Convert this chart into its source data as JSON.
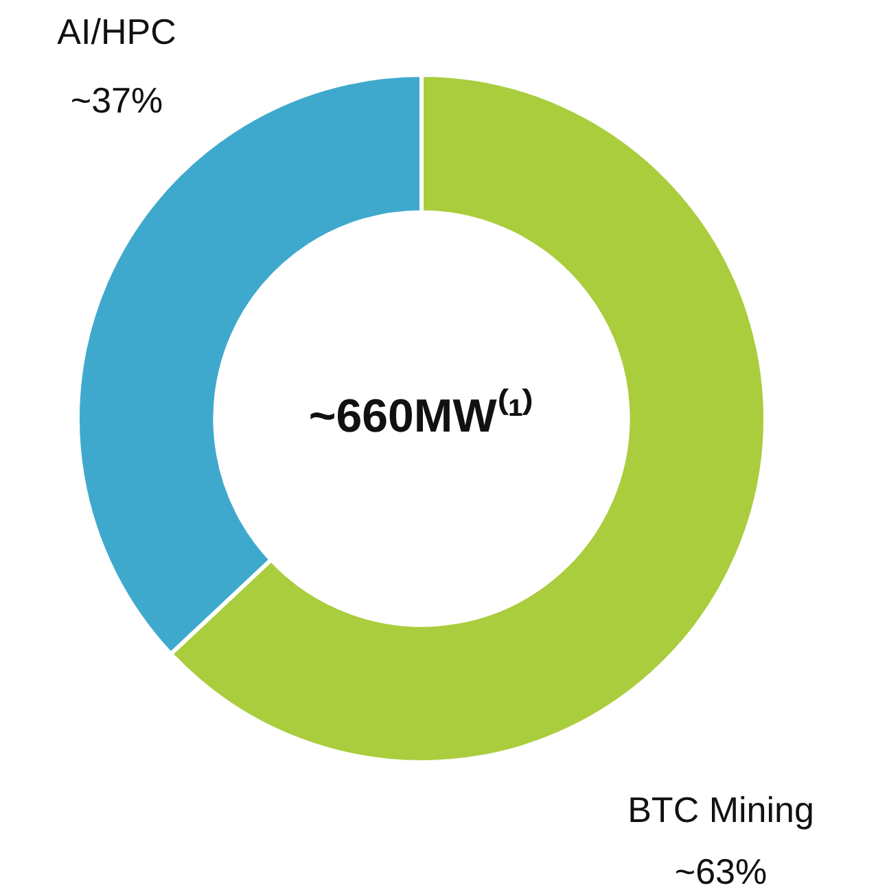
{
  "chart_data": {
    "type": "donut",
    "categories": [
      "BTC Mining",
      "AI/HPC"
    ],
    "values": [
      63,
      37
    ],
    "value_labels": [
      "~63%",
      "~37%"
    ],
    "colors": [
      "#a9cd3d",
      "#3fa9cd"
    ],
    "annotations": [
      "~660MW⁽¹⁾"
    ],
    "legend": false
  }
}
